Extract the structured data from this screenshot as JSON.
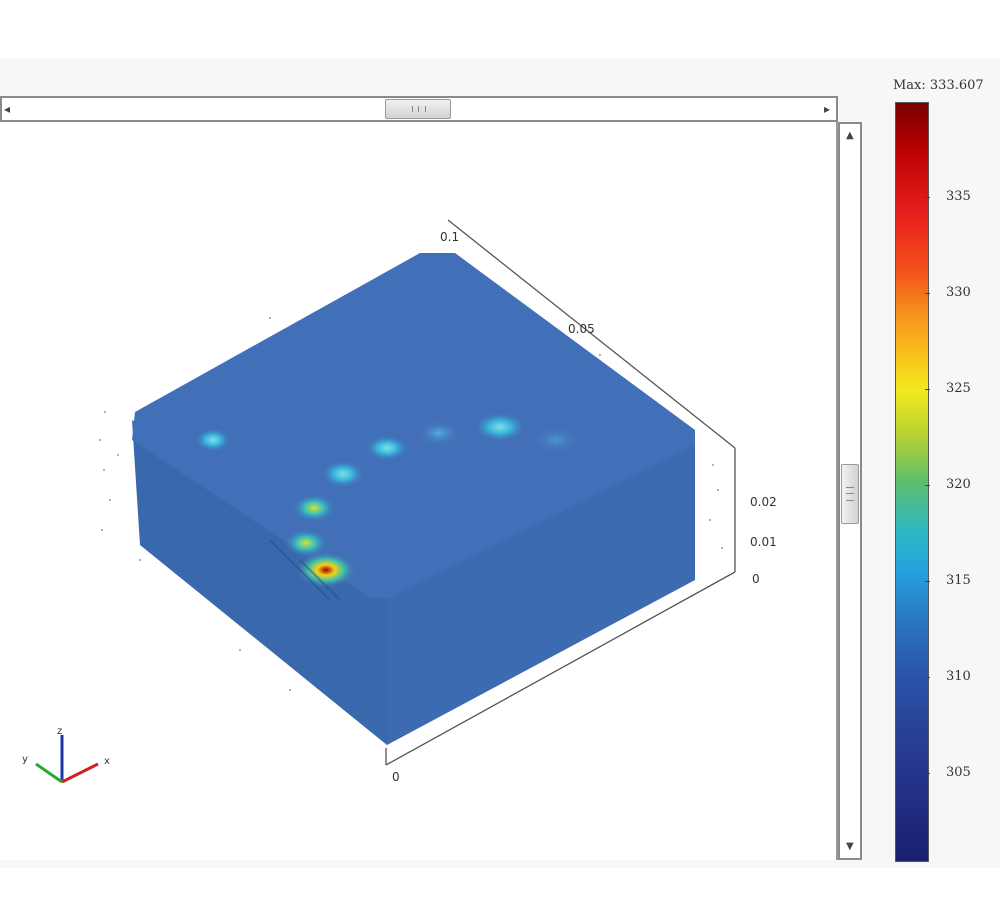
{
  "scrollbars": {
    "left_arrow": "◂",
    "right_arrow": "▸",
    "up_arrow": "▲",
    "down_arrow": "▼"
  },
  "legend": {
    "title": "Max: 333.607",
    "ticks": [
      "335",
      "330",
      "325",
      "320",
      "315",
      "310",
      "305"
    ]
  },
  "axes": {
    "label_01": "0.1",
    "label_005": "0.05",
    "label_002": "0.02",
    "label_001": "0.01",
    "label_0_right": "0",
    "label_0_bottom": "0"
  },
  "triad": {
    "x": "x",
    "y": "y",
    "z": "z"
  },
  "colors": {
    "block": "#3f6fb6",
    "colorbar_max": "#7a0000",
    "colorbar_min": "#1a1f6e"
  }
}
